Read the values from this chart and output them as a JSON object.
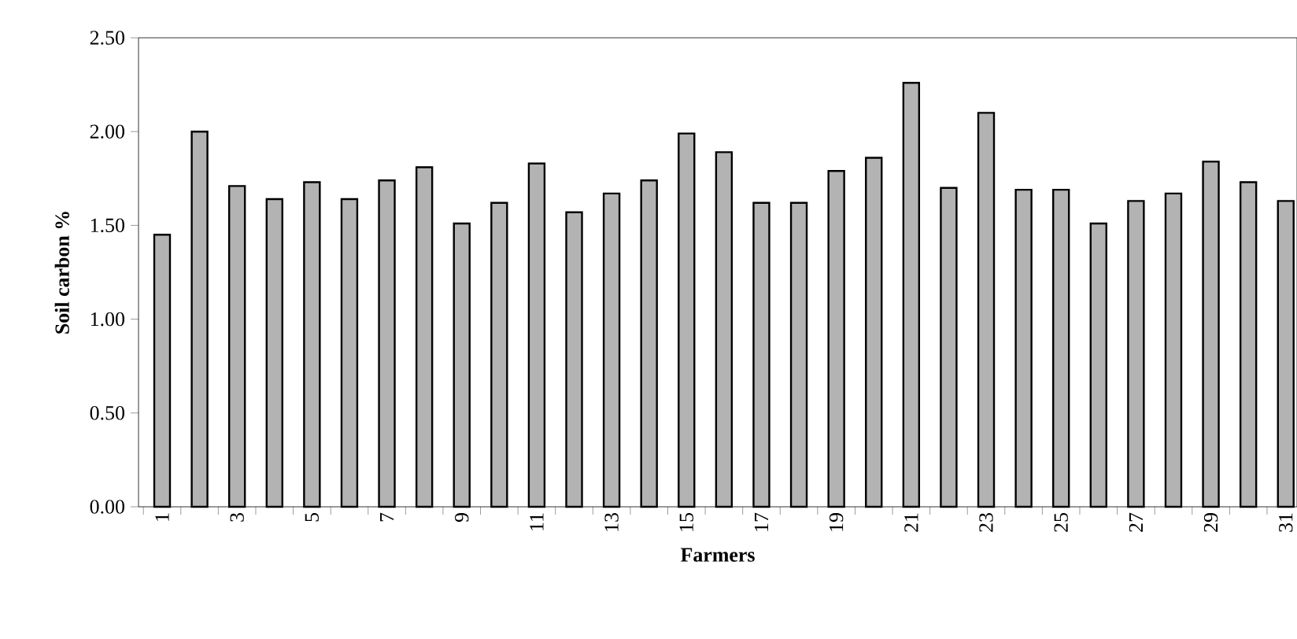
{
  "chart_data": {
    "type": "bar",
    "xlabel": "Farmers",
    "ylabel": "Soil carbon %",
    "categories": [
      "1",
      null,
      "3",
      null,
      "5",
      null,
      "7",
      null,
      "9",
      null,
      "11",
      null,
      "13",
      null,
      "15",
      null,
      "17",
      null,
      "19",
      null,
      "21",
      null,
      "23",
      null,
      "25",
      null,
      "27",
      null,
      "29",
      null,
      "31"
    ],
    "values": [
      1.45,
      2.0,
      1.71,
      1.64,
      1.73,
      1.64,
      1.74,
      1.81,
      1.51,
      1.62,
      1.83,
      1.57,
      1.67,
      1.74,
      1.99,
      1.89,
      1.62,
      1.62,
      1.79,
      1.86,
      2.26,
      1.7,
      2.1,
      1.69,
      1.69,
      1.51,
      1.63,
      1.67,
      1.84,
      1.73,
      1.63
    ],
    "color": "#b3b3b3",
    "ylim": [
      0,
      2.5
    ],
    "yticks": [
      {
        "value": 0,
        "label": "0.00"
      },
      {
        "value": 0.5,
        "label": "0.50"
      },
      {
        "value": 1,
        "label": "1.00"
      },
      {
        "value": 1.5,
        "label": "1.50"
      },
      {
        "value": 2,
        "label": "2.00"
      },
      {
        "value": 2.5,
        "label": "2.50"
      }
    ],
    "grid": false
  }
}
